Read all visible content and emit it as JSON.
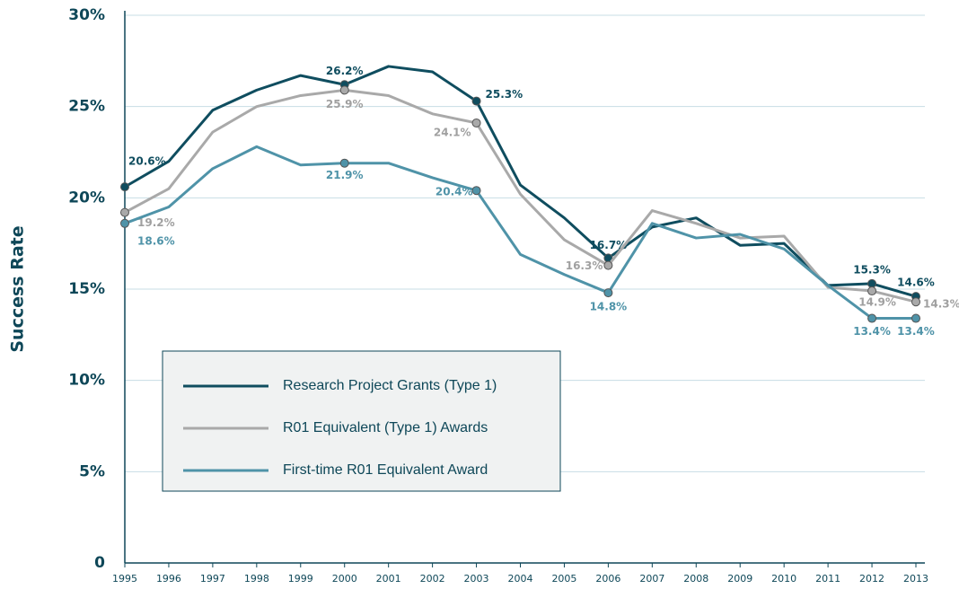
{
  "chart_data": {
    "type": "line",
    "y_label": "Success Rate",
    "categories": [
      "1995",
      "1996",
      "1997",
      "1998",
      "1999",
      "2000",
      "2001",
      "2002",
      "2003",
      "2004",
      "2005",
      "2006",
      "2007",
      "2008",
      "2009",
      "2010",
      "2011",
      "2012",
      "2013"
    ],
    "ylim": [
      0,
      30
    ],
    "yticks": [
      0,
      {
        "value": 5,
        "label": "5%"
      },
      {
        "value": 10,
        "label": "10%"
      },
      {
        "value": 15,
        "label": "15%"
      },
      {
        "value": 20,
        "label": "20%"
      },
      {
        "value": 25,
        "label": "25%"
      },
      {
        "value": 30,
        "label": "30%"
      }
    ],
    "grid": true,
    "legend": "lower left",
    "series": [
      {
        "name": "Research Project Grants (Type 1)",
        "color": "#0f4d5f",
        "values": [
          20.6,
          22.0,
          24.8,
          25.9,
          26.7,
          26.2,
          27.2,
          26.9,
          25.3,
          20.7,
          18.9,
          16.7,
          18.4,
          18.9,
          17.4,
          17.5,
          15.2,
          15.3,
          14.6
        ],
        "value_labels": [
          "20.6%",
          null,
          null,
          null,
          null,
          "26.2%",
          null,
          null,
          "25.3%",
          null,
          null,
          "16.7%",
          null,
          null,
          null,
          null,
          null,
          "15.3%",
          "14.6%"
        ]
      },
      {
        "name": "R01 Equivalent (Type 1) Awards",
        "color": "#a9a9a9",
        "values": [
          19.2,
          20.5,
          23.6,
          25.0,
          25.6,
          25.9,
          25.6,
          24.6,
          24.1,
          20.2,
          17.7,
          16.3,
          19.3,
          18.6,
          17.8,
          17.9,
          15.1,
          14.9,
          14.3
        ],
        "value_labels": [
          "19.2%",
          null,
          null,
          null,
          null,
          "25.9%",
          null,
          null,
          "24.1%",
          null,
          null,
          "16.3%",
          null,
          null,
          null,
          null,
          null,
          "14.9%",
          "14.3%"
        ]
      },
      {
        "name": "First-time R01 Equivalent Award",
        "color": "#4f93a8",
        "values": [
          18.6,
          19.5,
          21.6,
          22.8,
          21.8,
          21.9,
          21.9,
          21.1,
          20.4,
          16.9,
          15.8,
          14.8,
          18.6,
          17.8,
          18.0,
          17.2,
          15.2,
          13.4,
          13.4
        ],
        "value_labels": [
          "18.6%",
          null,
          null,
          null,
          null,
          "21.9%",
          null,
          null,
          "20.4%",
          null,
          null,
          "14.8%",
          null,
          null,
          null,
          null,
          null,
          "13.4%",
          "13.4%"
        ]
      }
    ]
  }
}
